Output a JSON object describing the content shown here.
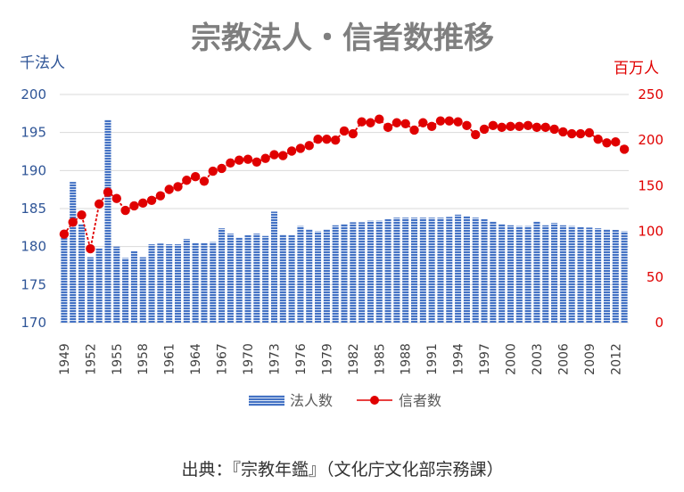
{
  "chart_data": {
    "type": "bar+line",
    "title": "宗教法人・信者数推移",
    "left_axis": {
      "unit": "千法人",
      "min": 170,
      "max": 200,
      "ticks": [
        170,
        175,
        180,
        185,
        190,
        195,
        200
      ],
      "color": "#2f5597"
    },
    "right_axis": {
      "unit": "百万人",
      "min": 0,
      "max": 250,
      "ticks": [
        0,
        50,
        100,
        150,
        200,
        250
      ],
      "color": "#e00000"
    },
    "years": [
      1949,
      1950,
      1951,
      1952,
      1953,
      1954,
      1955,
      1956,
      1957,
      1958,
      1959,
      1960,
      1961,
      1962,
      1963,
      1964,
      1965,
      1966,
      1967,
      1968,
      1969,
      1970,
      1971,
      1972,
      1973,
      1974,
      1975,
      1976,
      1977,
      1978,
      1979,
      1980,
      1981,
      1982,
      1983,
      1984,
      1985,
      1986,
      1987,
      1988,
      1989,
      1990,
      1991,
      1992,
      1993,
      1994,
      1995,
      1996,
      1997,
      1998,
      1999,
      2000,
      2001,
      2002,
      2003,
      2004,
      2005,
      2006,
      2007,
      2008,
      2009,
      2010,
      2011,
      2012,
      2013
    ],
    "x_tick_labels": [
      "1949",
      "1952",
      "1955",
      "1958",
      "1961",
      "1964",
      "1967",
      "1970",
      "1973",
      "1976",
      "1979",
      "1982",
      "1985",
      "1988",
      "1991",
      "1994",
      "1997",
      "2000",
      "2003",
      "2006",
      "2009",
      "2012"
    ],
    "series": [
      {
        "name": "法人数",
        "type": "bar",
        "axis": "left",
        "color": "#4472c4",
        "values": [
          182.1,
          188.5,
          183.0,
          178.6,
          179.8,
          196.7,
          180.0,
          178.5,
          179.4,
          178.6,
          180.3,
          180.4,
          180.3,
          180.3,
          181.0,
          180.5,
          180.5,
          180.6,
          182.4,
          181.7,
          181.2,
          181.5,
          181.7,
          181.4,
          184.6,
          181.6,
          181.5,
          182.7,
          182.3,
          182.0,
          182.3,
          182.8,
          183.0,
          183.2,
          183.2,
          183.4,
          183.4,
          183.6,
          183.8,
          183.8,
          183.8,
          183.8,
          183.8,
          183.8,
          183.9,
          184.2,
          184.0,
          183.8,
          183.6,
          183.3,
          183.0,
          182.8,
          182.7,
          182.7,
          183.3,
          182.8,
          183.1,
          182.8,
          182.7,
          182.6,
          182.5,
          182.4,
          182.3,
          182.2,
          182.0
        ]
      },
      {
        "name": "信者数",
        "type": "line",
        "axis": "right",
        "color": "#e00000",
        "values": [
          97,
          110,
          118,
          81,
          130,
          143,
          136,
          123,
          128,
          131,
          134,
          139,
          146,
          149,
          156,
          160,
          155,
          166,
          169,
          175,
          178,
          179,
          176,
          180,
          184,
          183,
          188,
          191,
          194,
          201,
          201,
          200,
          210,
          207,
          220,
          219,
          223,
          214,
          219,
          218,
          211,
          219,
          215,
          221,
          221,
          220,
          216,
          206,
          212,
          216,
          214,
          215,
          215,
          216,
          214,
          214,
          212,
          209,
          207,
          207,
          208,
          201,
          197,
          198,
          190
        ]
      }
    ],
    "legend": {
      "bar_label": "法人数",
      "line_label": "信者数",
      "position": "bottom"
    },
    "grid": "horizontal"
  },
  "source_note": "出典：『宗教年鑑』（文化庁文化部宗務課）"
}
